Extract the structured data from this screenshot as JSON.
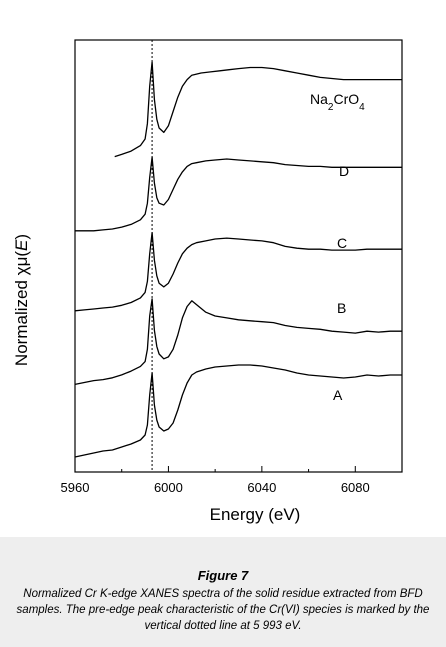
{
  "chart_data": {
    "type": "line",
    "xlabel": "Energy (eV)",
    "ylabel_prefix": "Normalized ",
    "ylabel_chi": "χ",
    "ylabel_mu": "μ(",
    "ylabel_E": "E",
    "ylabel_suffix": ")",
    "xlim": [
      5960,
      6100
    ],
    "xticks": [
      "5960",
      "6000",
      "6040",
      "6080"
    ],
    "xtick_values": [
      5960,
      6000,
      6040,
      6080
    ],
    "yticks_shown": false,
    "reference_line": {
      "x": 5993,
      "style": "dotted vertical"
    },
    "series": [
      {
        "name": "A",
        "x": [
          5960,
          5964,
          5968,
          5972,
          5976,
          5980,
          5984,
          5988,
          5990,
          5991,
          5992,
          5993,
          5994,
          5995,
          5996,
          5998,
          6000,
          6002,
          6004,
          6006,
          6008,
          6010,
          6012,
          6016,
          6020,
          6025,
          6030,
          6035,
          6040,
          6045,
          6050,
          6055,
          6060,
          6065,
          6070,
          6075,
          6080,
          6085,
          6090,
          6095,
          6100
        ],
        "y": [
          0.08,
          0.1,
          0.12,
          0.14,
          0.15,
          0.18,
          0.21,
          0.25,
          0.3,
          0.4,
          0.7,
          0.92,
          0.6,
          0.45,
          0.38,
          0.34,
          0.36,
          0.42,
          0.55,
          0.7,
          0.82,
          0.9,
          0.93,
          0.96,
          0.98,
          0.99,
          1.0,
          1.0,
          0.99,
          0.97,
          0.95,
          0.92,
          0.9,
          0.89,
          0.88,
          0.87,
          0.88,
          0.9,
          0.89,
          0.9,
          0.9
        ]
      },
      {
        "name": "B",
        "x": [
          5960,
          5964,
          5968,
          5972,
          5976,
          5980,
          5984,
          5988,
          5990,
          5991,
          5992,
          5993,
          5994,
          5995,
          5996,
          5998,
          6000,
          6002,
          6004,
          6006,
          6008,
          6010,
          6012,
          6016,
          6020,
          6025,
          6030,
          6035,
          6040,
          6045,
          6050,
          6055,
          6060,
          6065,
          6070,
          6075,
          6080,
          6085,
          6090,
          6095,
          6100
        ],
        "y": [
          0.08,
          0.1,
          0.12,
          0.13,
          0.15,
          0.18,
          0.22,
          0.27,
          0.32,
          0.45,
          0.8,
          0.98,
          0.65,
          0.48,
          0.4,
          0.35,
          0.37,
          0.45,
          0.6,
          0.78,
          0.9,
          0.96,
          0.92,
          0.84,
          0.8,
          0.78,
          0.76,
          0.75,
          0.74,
          0.73,
          0.7,
          0.68,
          0.67,
          0.66,
          0.64,
          0.63,
          0.62,
          0.64,
          0.63,
          0.64,
          0.64
        ]
      },
      {
        "name": "C",
        "x": [
          5960,
          5964,
          5968,
          5972,
          5976,
          5980,
          5984,
          5988,
          5990,
          5991,
          5992,
          5993,
          5994,
          5995,
          5996,
          5998,
          6000,
          6002,
          6004,
          6006,
          6008,
          6010,
          6012,
          6016,
          6020,
          6025,
          6030,
          6035,
          6040,
          6045,
          6050,
          6055,
          6060,
          6065,
          6070,
          6075,
          6080,
          6085,
          6090,
          6095,
          6100
        ],
        "y": [
          0.1,
          0.11,
          0.12,
          0.13,
          0.14,
          0.16,
          0.19,
          0.24,
          0.3,
          0.42,
          0.72,
          0.95,
          0.65,
          0.48,
          0.4,
          0.36,
          0.4,
          0.5,
          0.62,
          0.72,
          0.78,
          0.82,
          0.84,
          0.86,
          0.88,
          0.89,
          0.88,
          0.87,
          0.86,
          0.84,
          0.8,
          0.78,
          0.77,
          0.77,
          0.76,
          0.76,
          0.76,
          0.77,
          0.77,
          0.77,
          0.77
        ]
      },
      {
        "name": "D",
        "x": [
          5960,
          5964,
          5968,
          5972,
          5976,
          5980,
          5984,
          5988,
          5990,
          5991,
          5992,
          5993,
          5994,
          5995,
          5996,
          5998,
          6000,
          6002,
          6004,
          6006,
          6008,
          6010,
          6012,
          6016,
          6020,
          6025,
          6030,
          6035,
          6040,
          6045,
          6050,
          6055,
          6060,
          6065,
          6070,
          6075,
          6080,
          6085,
          6090,
          6095,
          6100
        ],
        "y": [
          0.1,
          0.1,
          0.1,
          0.11,
          0.12,
          0.14,
          0.17,
          0.22,
          0.28,
          0.4,
          0.68,
          0.9,
          0.62,
          0.46,
          0.4,
          0.38,
          0.44,
          0.55,
          0.66,
          0.74,
          0.8,
          0.83,
          0.84,
          0.86,
          0.87,
          0.88,
          0.87,
          0.86,
          0.85,
          0.84,
          0.82,
          0.81,
          0.8,
          0.8,
          0.79,
          0.79,
          0.79,
          0.79,
          0.79,
          0.79,
          0.79
        ]
      },
      {
        "name": "Na2CrO4",
        "name_main": "Na",
        "name_sub1": "2",
        "name_mid": "CrO",
        "name_sub2": "4",
        "x": [
          5977,
          5980,
          5984,
          5988,
          5990,
          5991,
          5992,
          5993,
          5994,
          5995,
          5996,
          5998,
          6000,
          6002,
          6004,
          6006,
          6008,
          6010,
          6014,
          6018,
          6022,
          6026,
          6030,
          6035,
          6040,
          6045,
          6050,
          6055,
          6060,
          6065,
          6070,
          6075,
          6080,
          6085,
          6090,
          6095,
          6100
        ],
        "y": [
          0.14,
          0.16,
          0.19,
          0.24,
          0.3,
          0.44,
          0.78,
          1.0,
          0.66,
          0.48,
          0.4,
          0.36,
          0.42,
          0.55,
          0.68,
          0.78,
          0.84,
          0.88,
          0.9,
          0.91,
          0.92,
          0.93,
          0.94,
          0.95,
          0.95,
          0.94,
          0.92,
          0.9,
          0.88,
          0.86,
          0.85,
          0.84,
          0.84,
          0.84,
          0.84,
          0.84,
          0.84
        ]
      }
    ]
  },
  "figure": {
    "title": "Figure 7",
    "caption": "Normalized Cr K-edge XANES spectra of the solid residue extracted from BFD samples. The pre-edge peak characteristic of the Cr(VI) species is marked by the vertical dotted line at 5 993 eV."
  }
}
